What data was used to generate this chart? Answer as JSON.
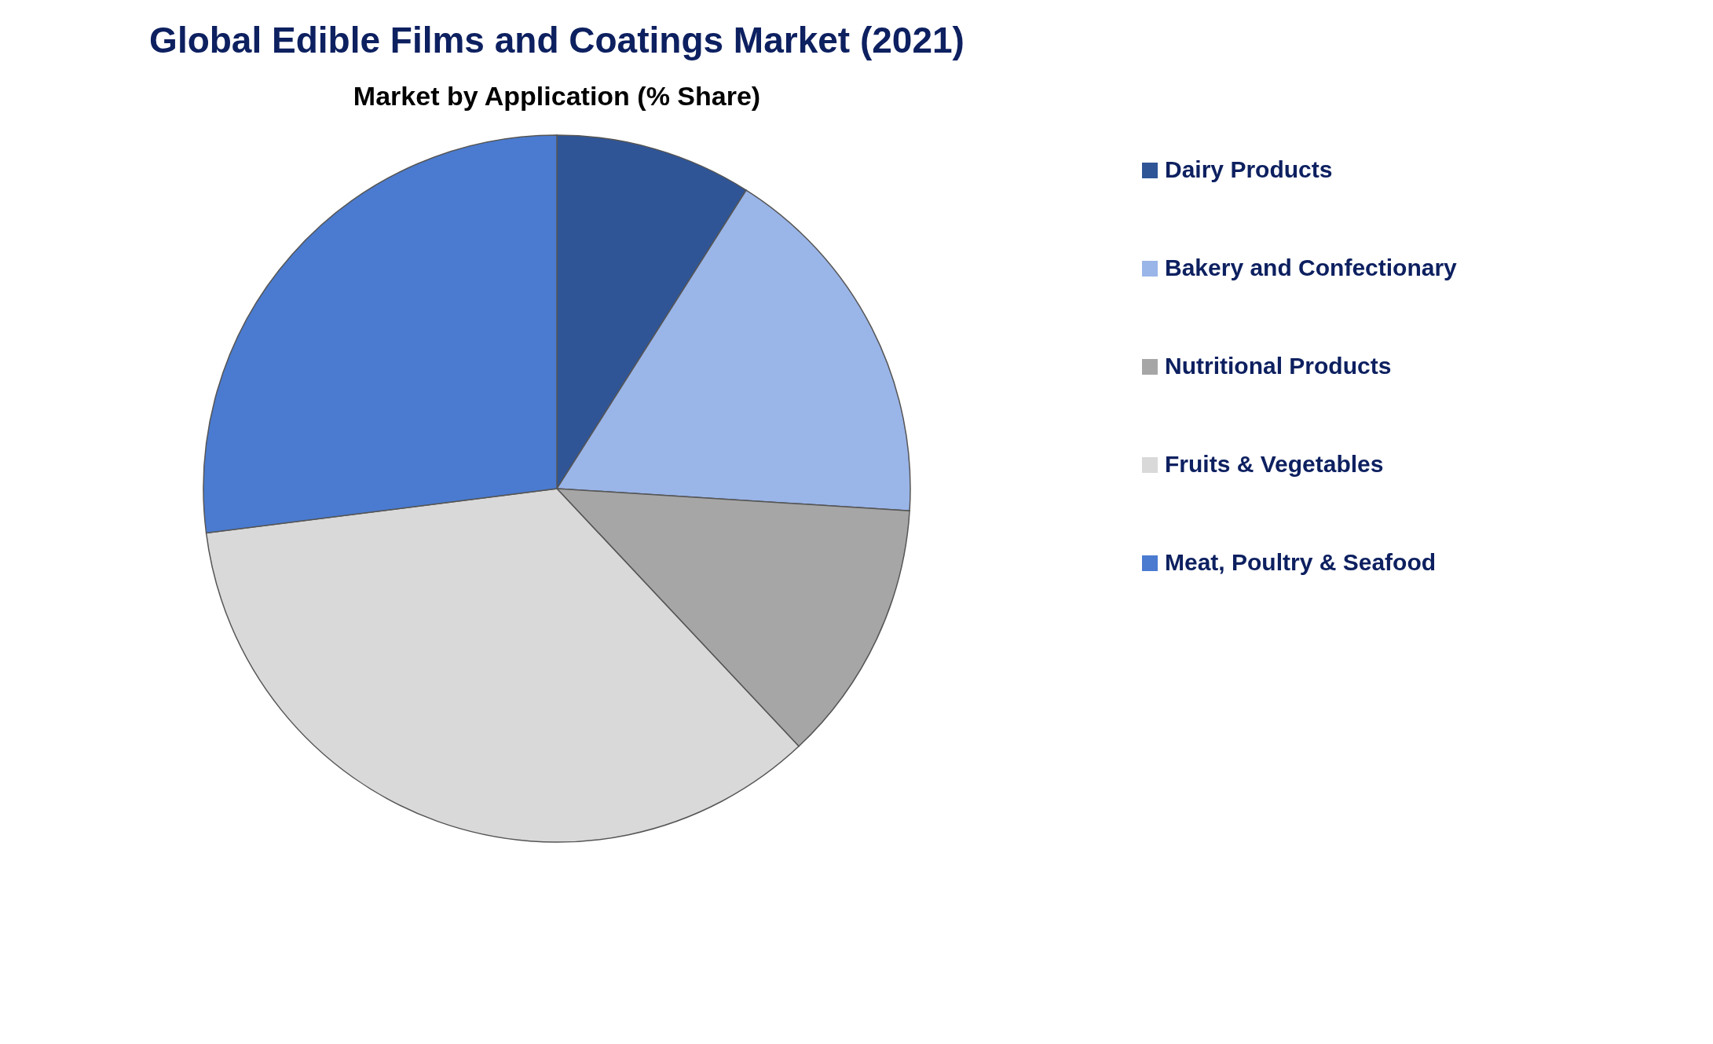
{
  "chart_data": {
    "type": "pie",
    "title": "Global Edible Films and Coatings Market (2021)",
    "subtitle": "Market by Application (% Share)",
    "categories": [
      "Dairy Products",
      "Bakery and Confectionary",
      "Nutritional Products",
      "Fruits & Vegetables",
      "Meat, Poultry & Seafood"
    ],
    "values": [
      9,
      17,
      12,
      35,
      27
    ],
    "colors": [
      "#2f5597",
      "#9ab5e8",
      "#a6a6a6",
      "#d9d9d9",
      "#4a7bd0"
    ],
    "legend": "right"
  }
}
